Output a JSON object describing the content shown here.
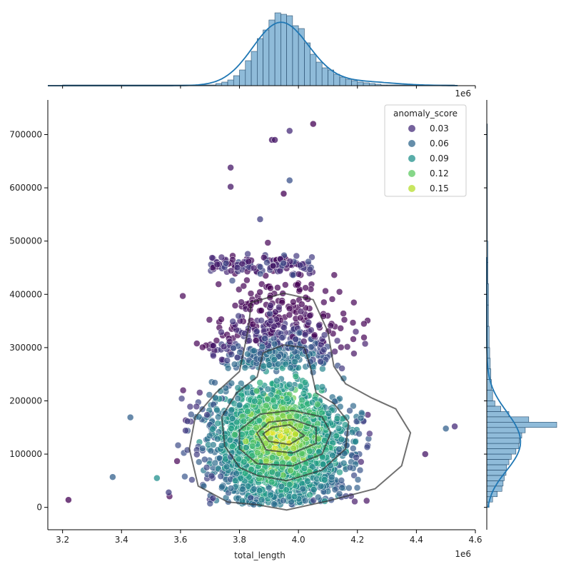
{
  "chart_data": {
    "type": "scatter",
    "xlabel": "total_length",
    "ylabel": "",
    "x_offset_label": "1e6",
    "x_ticks": [
      3.2,
      3.4,
      3.6,
      3.8,
      4.0,
      4.2,
      4.4,
      4.6
    ],
    "y_ticks": [
      0,
      100000,
      200000,
      300000,
      400000,
      500000,
      600000,
      700000
    ],
    "xlim": [
      3.15,
      4.6
    ],
    "ylim": [
      -42000,
      765000
    ],
    "legend": {
      "title": "anomaly_score",
      "placement": "top-right",
      "entries": [
        {
          "label": "0.03",
          "color": "#472d7b"
        },
        {
          "label": "0.06",
          "color": "#31688e"
        },
        {
          "label": "0.09",
          "color": "#21918c"
        },
        {
          "label": "0.12",
          "color": "#5ec962"
        },
        {
          "label": "0.15",
          "color": "#b5de2b"
        }
      ]
    },
    "colormap": "viridis",
    "marginal_color": "#1f77b4",
    "contour_color": "#333333",
    "scatter_notes": "Dense cloud centered near total_length 3.93e6, value 130000; outliers shown as explicit points",
    "notable_points": [
      {
        "x": 3.22,
        "y": 14000,
        "score": 0.01
      },
      {
        "x": 3.37,
        "y": 57000,
        "score": 0.06
      },
      {
        "x": 3.43,
        "y": 169000,
        "score": 0.06
      },
      {
        "x": 3.91,
        "y": 690000,
        "score": 0.02
      },
      {
        "x": 3.92,
        "y": 690000,
        "score": 0.02
      },
      {
        "x": 3.97,
        "y": 707000,
        "score": 0.03
      },
      {
        "x": 4.05,
        "y": 720000,
        "score": 0.01
      },
      {
        "x": 3.77,
        "y": 638000,
        "score": 0.02
      },
      {
        "x": 3.77,
        "y": 602000,
        "score": 0.02
      },
      {
        "x": 3.95,
        "y": 589000,
        "score": 0.01
      },
      {
        "x": 3.97,
        "y": 614000,
        "score": 0.05
      },
      {
        "x": 3.87,
        "y": 541000,
        "score": 0.04
      },
      {
        "x": 4.53,
        "y": 152000,
        "score": 0.03
      },
      {
        "x": 4.5,
        "y": 148000,
        "score": 0.06
      },
      {
        "x": 4.43,
        "y": 100000,
        "score": 0.02
      },
      {
        "x": 3.56,
        "y": 28000,
        "score": 0.04
      },
      {
        "x": 3.52,
        "y": 55000,
        "score": 0.09
      }
    ],
    "contours": [
      [
        [
          3.86,
          5000
        ],
        [
          3.96,
          -5000
        ],
        [
          4.1,
          12000
        ],
        [
          4.26,
          35000
        ],
        [
          4.35,
          78000
        ],
        [
          4.38,
          140000
        ],
        [
          4.33,
          185000
        ],
        [
          4.25,
          205000
        ],
        [
          4.16,
          232000
        ],
        [
          4.12,
          265000
        ],
        [
          4.1,
          330000
        ],
        [
          4.05,
          390000
        ],
        [
          3.95,
          402000
        ],
        [
          3.84,
          385000
        ],
        [
          3.83,
          335000
        ],
        [
          3.8,
          255000
        ],
        [
          3.72,
          215000
        ],
        [
          3.65,
          170000
        ],
        [
          3.63,
          110000
        ],
        [
          3.66,
          40000
        ],
        [
          3.76,
          10000
        ],
        [
          3.86,
          5000
        ]
      ],
      [
        [
          3.86,
          60000
        ],
        [
          3.96,
          50000
        ],
        [
          4.08,
          70000
        ],
        [
          4.16,
          110000
        ],
        [
          4.17,
          160000
        ],
        [
          4.12,
          195000
        ],
        [
          4.06,
          215000
        ],
        [
          4.04,
          265000
        ],
        [
          4.02,
          300000
        ],
        [
          3.95,
          305000
        ],
        [
          3.88,
          290000
        ],
        [
          3.86,
          245000
        ],
        [
          3.79,
          215000
        ],
        [
          3.74,
          170000
        ],
        [
          3.75,
          115000
        ],
        [
          3.8,
          75000
        ],
        [
          3.86,
          60000
        ]
      ],
      [
        [
          3.86,
          82000
        ],
        [
          3.98,
          78000
        ],
        [
          4.08,
          100000
        ],
        [
          4.11,
          140000
        ],
        [
          4.08,
          170000
        ],
        [
          3.98,
          182000
        ],
        [
          3.87,
          175000
        ],
        [
          3.8,
          145000
        ],
        [
          3.8,
          110000
        ],
        [
          3.86,
          82000
        ]
      ],
      [
        [
          3.89,
          108000
        ],
        [
          3.98,
          102000
        ],
        [
          4.06,
          120000
        ],
        [
          4.06,
          150000
        ],
        [
          3.98,
          165000
        ],
        [
          3.9,
          160000
        ],
        [
          3.86,
          140000
        ],
        [
          3.89,
          108000
        ]
      ],
      [
        [
          3.9,
          124000
        ],
        [
          3.97,
          118000
        ],
        [
          4.02,
          135000
        ],
        [
          3.97,
          155000
        ],
        [
          3.91,
          150000
        ],
        [
          3.88,
          138000
        ],
        [
          3.9,
          124000
        ]
      ]
    ],
    "x_hist": {
      "bins": [
        3.2,
        3.72,
        3.74,
        3.76,
        3.78,
        3.8,
        3.82,
        3.84,
        3.86,
        3.88,
        3.9,
        3.92,
        3.94,
        3.96,
        3.98,
        4.0,
        4.02,
        4.04,
        4.06,
        4.08,
        4.1,
        4.12,
        4.14,
        4.16,
        4.18,
        4.2,
        4.22,
        4.24,
        4.26,
        4.28,
        4.3,
        4.53
      ],
      "counts": [
        1,
        3,
        5,
        8,
        14,
        22,
        35,
        48,
        66,
        78,
        92,
        102,
        100,
        98,
        84,
        80,
        60,
        44,
        33,
        25,
        22,
        16,
        12,
        9,
        7,
        5,
        4,
        3,
        2,
        1,
        1
      ]
    },
    "y_hist": {
      "bins": [
        0,
        10000,
        20000,
        30000,
        40000,
        50000,
        60000,
        70000,
        80000,
        90000,
        100000,
        110000,
        120000,
        130000,
        140000,
        150000,
        160000,
        170000,
        180000,
        190000,
        200000,
        220000,
        240000,
        260000,
        280000,
        300000,
        340000,
        380000,
        420000,
        460000,
        500000,
        720000
      ],
      "counts": [
        4,
        10,
        18,
        26,
        28,
        30,
        33,
        34,
        38,
        42,
        50,
        55,
        56,
        60,
        66,
        120,
        72,
        38,
        24,
        14,
        10,
        8,
        7,
        6,
        5,
        4,
        3,
        3,
        2,
        2,
        1
      ]
    }
  }
}
